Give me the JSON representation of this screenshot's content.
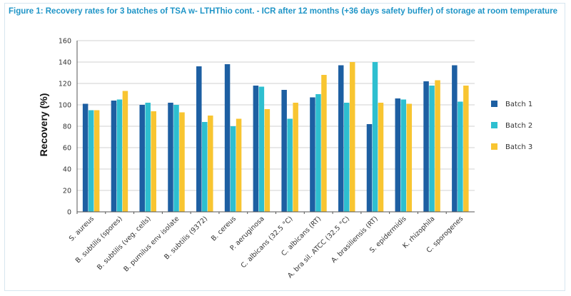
{
  "figure": {
    "title": "Figure 1: Recovery rates for 3 batches of TSA w- LTHThio cont. - ICR after 12 months (+36 days safety buffer) of storage at room temperature"
  },
  "colors": {
    "batch1": "#1d5fa2",
    "batch2": "#2ebfd0",
    "batch3": "#f8c531",
    "grid": "#d0d0d0",
    "axis": "#555555",
    "title": "#1f95c7"
  },
  "chart_data": {
    "type": "bar",
    "title": "",
    "xlabel": "",
    "ylabel": "Recovery (%)",
    "ylim": [
      0,
      160
    ],
    "yticks": [
      0,
      20,
      40,
      60,
      80,
      100,
      120,
      140,
      160
    ],
    "grid": true,
    "legend_position": "right",
    "categories": [
      "S. aureus",
      "B. subtilis (spores)",
      "B. subtilis (veg. cells)",
      "B. pumilus env isolate",
      "B. subtilis (9372)",
      "B. cereus",
      "P. aeruginosa",
      "C. albicans (32.5 °C)",
      "C. albicans (RT)",
      "A. bra sil. ATCC (32.5 °C)",
      "A. brasiliensis (RT)",
      "S. epidermidis",
      "K. rhizophila",
      "C. sporogenes"
    ],
    "series": [
      {
        "name": "Batch 1",
        "values": [
          101,
          104,
          100,
          102,
          136,
          138,
          118,
          114,
          107,
          137,
          82,
          106,
          122,
          137
        ]
      },
      {
        "name": "Batch 2",
        "values": [
          95,
          105,
          102,
          100,
          84,
          80,
          117,
          87,
          110,
          102,
          140,
          105,
          118,
          103
        ]
      },
      {
        "name": "Batch 3",
        "values": [
          95,
          113,
          94,
          93,
          90,
          87,
          96,
          102,
          128,
          140,
          102,
          101,
          123,
          118
        ]
      }
    ]
  }
}
